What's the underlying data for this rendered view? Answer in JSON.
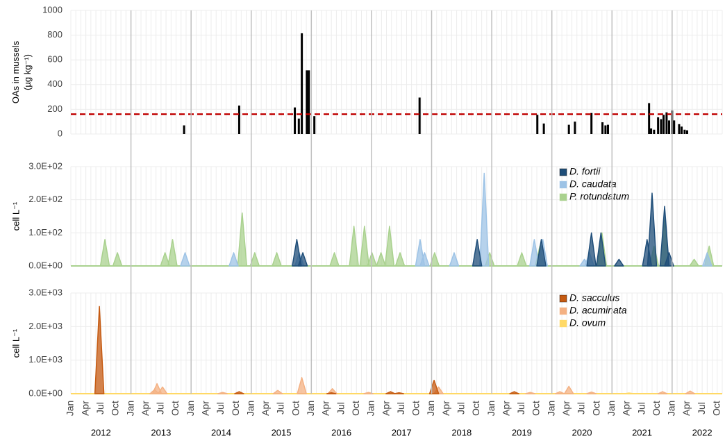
{
  "chart_data": [
    {
      "type": "bar",
      "ylabel": [
        "OAs in mussels",
        "(µg kg⁻¹)"
      ],
      "color": "#000000",
      "x": [
        22.6,
        33.6,
        44.7,
        45.5,
        46.1,
        47.1,
        47.5,
        48.6,
        69.6,
        93.1,
        94.4,
        99.4,
        100.6,
        103.9,
        106.1,
        106.7,
        107.2,
        115.4,
        115.8,
        116.4,
        117.2,
        117.8,
        118.3,
        118.9,
        119.4,
        120.0,
        120.4,
        121.4,
        121.9,
        122.5,
        123.0
      ],
      "values": [
        70,
        230,
        215,
        125,
        815,
        515,
        515,
        145,
        295,
        155,
        85,
        75,
        100,
        170,
        95,
        70,
        75,
        250,
        45,
        35,
        135,
        120,
        155,
        175,
        110,
        190,
        110,
        80,
        60,
        35,
        30
      ],
      "threshold": 160,
      "threshold_color": "#c00000",
      "xlim": [
        0,
        130
      ],
      "ylim": [
        0,
        1000
      ],
      "yticks": [
        0,
        200,
        400,
        600,
        800,
        1000
      ],
      "grid": true
    },
    {
      "type": "area",
      "ylabel": [
        "cell L⁻¹"
      ],
      "series": [
        {
          "name": "D. fortii",
          "color": "#1f4e79",
          "x": [
            45.1,
            46.3,
            81.1,
            93.9,
            103.9,
            105.8,
            109.4,
            115.0,
            116.0,
            118.5,
            119.4
          ],
          "values": [
            80,
            40,
            80,
            80,
            100,
            100,
            20,
            80,
            220,
            180,
            40
          ]
        },
        {
          "name": "D. caudata",
          "color": "#9dc3e6",
          "x": [
            22.8,
            32.5,
            45.6,
            69.7,
            70.6,
            76.5,
            82.5,
            92.5,
            94.2,
            102.5,
            103.5,
            127.0
          ],
          "values": [
            40,
            40,
            40,
            80,
            40,
            40,
            280,
            80,
            80,
            20,
            40,
            40
          ]
        },
        {
          "name": "P. rotundatum",
          "color": "#a9d18e",
          "x": [
            6.8,
            9.3,
            18.8,
            20.3,
            34.2,
            36.7,
            41.1,
            52.6,
            56.5,
            58.6,
            60.1,
            61.9,
            63.6,
            65.7,
            72.6,
            83.6,
            90.0,
            93.6,
            106.0,
            116.4,
            118.5,
            124.4,
            127.4
          ],
          "values": [
            80,
            40,
            40,
            80,
            160,
            40,
            40,
            40,
            120,
            120,
            40,
            40,
            120,
            40,
            40,
            40,
            40,
            60,
            100,
            60,
            140,
            20,
            60
          ]
        }
      ],
      "xlim": [
        0,
        130
      ],
      "ylim": [
        0,
        300
      ],
      "yticks": [
        {
          "value": 0,
          "label": "0.0E+00"
        },
        {
          "value": 100,
          "label": "1.0E+02"
        },
        {
          "value": 200,
          "label": "2.0E+02"
        },
        {
          "value": 300,
          "label": "3.0E+02"
        }
      ],
      "grid": true
    },
    {
      "type": "area",
      "ylabel": [
        "cell L⁻¹"
      ],
      "series": [
        {
          "name": "D. sacculus",
          "color": "#c55a11",
          "x": [
            5.7,
            33.6,
            52.0,
            63.8,
            65.5,
            72.5,
            88.5
          ],
          "values": [
            2600,
            60,
            30,
            60,
            30,
            400,
            60
          ]
        },
        {
          "name": "D. acuminata",
          "color": "#f4b183",
          "x": [
            16.7,
            17.2,
            18.3,
            30.3,
            41.3,
            46.1,
            52.2,
            59.4,
            73.4,
            91.7,
            97.6,
            99.4,
            103.9,
            118.1,
            123.6
          ],
          "values": [
            120,
            300,
            200,
            40,
            100,
            480,
            150,
            40,
            200,
            40,
            60,
            220,
            50,
            60,
            80
          ]
        },
        {
          "name": "D. ovum",
          "color": "#ffd966",
          "x": [
            111.4
          ],
          "values": [
            20
          ]
        }
      ],
      "xlim": [
        0,
        130
      ],
      "ylim": [
        0,
        3000
      ],
      "yticks": [
        {
          "value": 0,
          "label": "0.0E+00"
        },
        {
          "value": 1000,
          "label": "1.0E+03"
        },
        {
          "value": 2000,
          "label": "2.0E+03"
        },
        {
          "value": 3000,
          "label": "3.0E+03"
        }
      ],
      "grid": true,
      "xticks": [
        {
          "value": 0,
          "label": "Jan"
        },
        {
          "value": 3,
          "label": "Apr"
        },
        {
          "value": 6,
          "label": "Jul"
        },
        {
          "value": 9,
          "label": "Oct"
        },
        {
          "value": 12,
          "label": "Jan"
        },
        {
          "value": 15,
          "label": "Apr"
        },
        {
          "value": 18,
          "label": "Jul"
        },
        {
          "value": 21,
          "label": "Oct"
        },
        {
          "value": 24,
          "label": "Jan"
        },
        {
          "value": 27,
          "label": "Apr"
        },
        {
          "value": 30,
          "label": "Jul"
        },
        {
          "value": 33,
          "label": "Oct"
        },
        {
          "value": 36,
          "label": "Jan"
        },
        {
          "value": 39,
          "label": "Apr"
        },
        {
          "value": 42,
          "label": "Jul"
        },
        {
          "value": 45,
          "label": "Oct"
        },
        {
          "value": 48,
          "label": "Jan"
        },
        {
          "value": 51,
          "label": "Apr"
        },
        {
          "value": 54,
          "label": "Jul"
        },
        {
          "value": 57,
          "label": "Oct"
        },
        {
          "value": 60,
          "label": "Jan"
        },
        {
          "value": 63,
          "label": "Apr"
        },
        {
          "value": 66,
          "label": "Jul"
        },
        {
          "value": 69,
          "label": "Oct"
        },
        {
          "value": 72,
          "label": "Jan"
        },
        {
          "value": 75,
          "label": "Apr"
        },
        {
          "value": 78,
          "label": "Jul"
        },
        {
          "value": 81,
          "label": "Oct"
        },
        {
          "value": 84,
          "label": "Jan"
        },
        {
          "value": 87,
          "label": "Apr"
        },
        {
          "value": 90,
          "label": "Jul"
        },
        {
          "value": 93,
          "label": "Oct"
        },
        {
          "value": 96,
          "label": "Jan"
        },
        {
          "value": 99,
          "label": "Apr"
        },
        {
          "value": 102,
          "label": "Jul"
        },
        {
          "value": 105,
          "label": "Oct"
        },
        {
          "value": 108,
          "label": "Jan"
        },
        {
          "value": 111,
          "label": "Apr"
        },
        {
          "value": 114,
          "label": "Jul"
        },
        {
          "value": 117,
          "label": "Oct"
        },
        {
          "value": 120,
          "label": "Jan"
        },
        {
          "value": 123,
          "label": "Apr"
        },
        {
          "value": 126,
          "label": "Jul"
        },
        {
          "value": 129,
          "label": "Oct"
        }
      ],
      "years": [
        "2012",
        "2013",
        "2014",
        "2015",
        "2016",
        "2017",
        "2018",
        "2019",
        "2020",
        "2021",
        "2022"
      ]
    }
  ]
}
